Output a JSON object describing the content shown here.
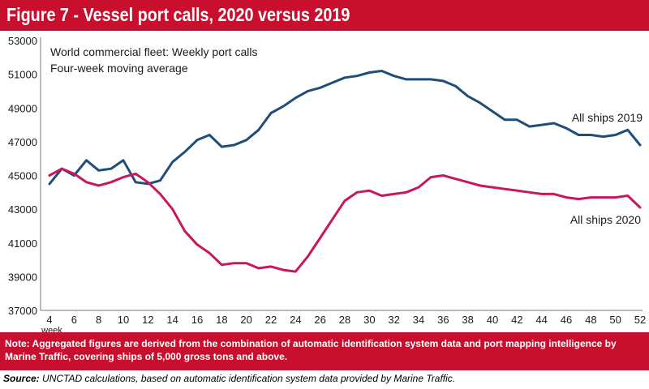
{
  "figure": {
    "title": "Figure 7 - Vessel port calls, 2020 versus 2019",
    "note": "Note: Aggregated figures are derived from the combination of automatic identification system data and port mapping intelligence by Marine Traffic, covering ships of 5,000 gross tons and above.",
    "source_label": "Source:",
    "source_text": " UNCTAD calculations, based on automatic identification system data provided by Marine Traffic.",
    "colors": {
      "title_bar": "#c8102e",
      "series_2019": "#1f4e79",
      "series_2020": "#c8175d"
    }
  },
  "chart_data": {
    "type": "line",
    "title": "",
    "annotation_lines": [
      "World commercial fleet: Weekly port calls",
      "Four-week moving average"
    ],
    "xlabel": "week",
    "ylabel": "",
    "xlim": [
      4,
      52
    ],
    "ylim": [
      37000,
      53000
    ],
    "x_ticks": [
      4,
      6,
      8,
      10,
      12,
      14,
      16,
      18,
      20,
      22,
      24,
      26,
      28,
      30,
      32,
      34,
      36,
      38,
      40,
      42,
      44,
      46,
      48,
      50,
      52
    ],
    "y_ticks": [
      37000,
      39000,
      41000,
      43000,
      45000,
      47000,
      49000,
      51000,
      53000
    ],
    "y_tick_labels": [
      "37000",
      "39000",
      "41000",
      "43000",
      "45000",
      "47000",
      "49000",
      "51000",
      "53000"
    ],
    "grid": false,
    "x": [
      4,
      5,
      6,
      7,
      8,
      9,
      10,
      11,
      12,
      13,
      14,
      15,
      16,
      17,
      18,
      19,
      20,
      21,
      22,
      23,
      24,
      25,
      26,
      27,
      28,
      29,
      30,
      31,
      32,
      33,
      34,
      35,
      36,
      37,
      38,
      39,
      40,
      41,
      42,
      43,
      44,
      45,
      46,
      47,
      48,
      49,
      50,
      51,
      52
    ],
    "series": [
      {
        "name": "All ships 2019",
        "values": [
          44500,
          45400,
          45000,
          45900,
          45300,
          45400,
          45900,
          44600,
          44500,
          44700,
          45800,
          46400,
          47100,
          47400,
          46700,
          46800,
          47100,
          47700,
          48700,
          49100,
          49600,
          50000,
          50200,
          50500,
          50800,
          50900,
          51100,
          51200,
          50900,
          50700,
          50700,
          50700,
          50600,
          50300,
          49700,
          49300,
          48800,
          48300,
          48300,
          47900,
          48000,
          48100,
          47800,
          47400,
          47400,
          47300,
          47400,
          47700,
          46800
        ]
      },
      {
        "name": "All ships 2020",
        "values": [
          45000,
          45400,
          45100,
          44600,
          44400,
          44600,
          44900,
          45100,
          44600,
          43900,
          43000,
          41700,
          40900,
          40400,
          39700,
          39800,
          39800,
          39500,
          39600,
          39400,
          39300,
          40200,
          41300,
          42400,
          43500,
          44000,
          44100,
          43800,
          43900,
          44000,
          44300,
          44900,
          45000,
          44800,
          44600,
          44400,
          44300,
          44200,
          44100,
          44000,
          43900,
          43900,
          43700,
          43600,
          43700,
          43700,
          43700,
          43800,
          43100
        ]
      }
    ]
  }
}
